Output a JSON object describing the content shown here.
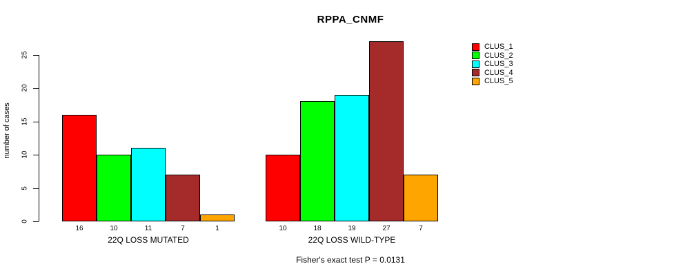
{
  "title": "RPPA_CNMF",
  "caption": "Fisher's exact test P = 0.0131",
  "chart_data": {
    "type": "bar",
    "title": "RPPA_CNMF",
    "xlabel": "",
    "ylabel": "number of cases",
    "categories": [
      "22Q LOSS MUTATED",
      "22Q LOSS WILD-TYPE"
    ],
    "series": [
      {
        "name": "CLUS_1",
        "color": "#ff0000",
        "values": [
          16,
          10
        ]
      },
      {
        "name": "CLUS_2",
        "color": "#00ff00",
        "values": [
          10,
          18
        ]
      },
      {
        "name": "CLUS_3",
        "color": "#00ffff",
        "values": [
          11,
          19
        ]
      },
      {
        "name": "CLUS_4",
        "color": "#a52a2a",
        "values": [
          7,
          27
        ]
      },
      {
        "name": "CLUS_5",
        "color": "#ffa500",
        "values": [
          1,
          7
        ]
      }
    ],
    "bar_value_labels_shown": true,
    "yticks": [
      0,
      5,
      10,
      15,
      20,
      25
    ],
    "ylim": [
      0,
      27
    ],
    "grid": false,
    "legend_position": "right",
    "bar_border_color": "#000000",
    "annotation": "Fisher's exact test P = 0.0131"
  }
}
